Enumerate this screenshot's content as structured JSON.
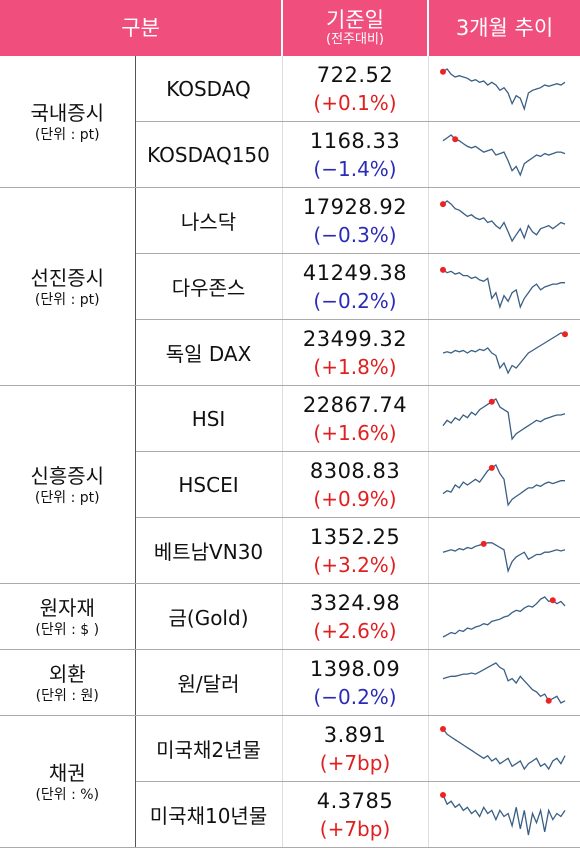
{
  "header": {
    "col1": "구분",
    "col2_main": "기준일",
    "col2_sub": "(전주대비)",
    "col3": "3개월 추이"
  },
  "groups": [
    {
      "name": "국내증시",
      "unit": "(단위 : pt)",
      "rows": [
        {
          "name": "KOSDAQ",
          "value": "722.52",
          "change": "(+0.1%)",
          "dir": "up"
        },
        {
          "name": "KOSDAQ150",
          "value": "1168.33",
          "change": "(−1.4%)",
          "dir": "down"
        }
      ]
    },
    {
      "name": "선진증시",
      "unit": "(단위 : pt)",
      "rows": [
        {
          "name": "나스닥",
          "value": "17928.92",
          "change": "(−0.3%)",
          "dir": "down"
        },
        {
          "name": "다우존스",
          "value": "41249.38",
          "change": "(−0.2%)",
          "dir": "down"
        },
        {
          "name": "독일 DAX",
          "value": "23499.32",
          "change": "(+1.8%)",
          "dir": "up"
        }
      ]
    },
    {
      "name": "신흥증시",
      "unit": "(단위 : pt)",
      "rows": [
        {
          "name": "HSI",
          "value": "22867.74",
          "change": "(+1.6%)",
          "dir": "up"
        },
        {
          "name": "HSCEI",
          "value": "8308.83",
          "change": "(+0.9%)",
          "dir": "up"
        },
        {
          "name": "베트남VN30",
          "value": "1352.25",
          "change": "(+3.2%)",
          "dir": "up"
        }
      ]
    },
    {
      "name": "원자재",
      "unit": "(단위 : $ )",
      "rows": [
        {
          "name": "금(Gold)",
          "value": "3324.98",
          "change": "(+2.6%)",
          "dir": "up"
        }
      ]
    },
    {
      "name": "외환",
      "unit": "(단위 : 원)",
      "rows": [
        {
          "name": "원/달러",
          "value": "1398.09",
          "change": "(−0.2%)",
          "dir": "down"
        }
      ]
    },
    {
      "name": "채권",
      "unit": "(단위 : %)",
      "rows": [
        {
          "name": "미국채2년물",
          "value": "3.891",
          "change": "(+7bp)",
          "dir": "up"
        },
        {
          "name": "미국채10년물",
          "value": "4.3785",
          "change": "(+7bp)",
          "dir": "up"
        }
      ]
    }
  ],
  "colors": {
    "header_bg": "#f04f7e",
    "up": "#e02020",
    "down": "#2b2bb8",
    "line": "#3a5f85",
    "marker": "#ee2222"
  }
}
